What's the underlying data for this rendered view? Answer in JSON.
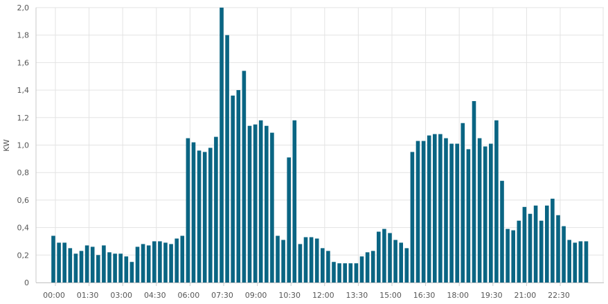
{
  "chart_data": {
    "type": "bar",
    "ylabel": "KW",
    "xlabel": "",
    "ylim": [
      0,
      2.0
    ],
    "yticks": [
      "0",
      "0,2",
      "0,4",
      "0,6",
      "0,8",
      "1,0",
      "1,2",
      "1,4",
      "1,6",
      "1,8",
      "2,0"
    ],
    "xtick_labels": [
      "00:00",
      "01:30",
      "03:00",
      "04:30",
      "06:00",
      "07:30",
      "09:00",
      "10:30",
      "12:00",
      "13:30",
      "15:00",
      "16:30",
      "18:00",
      "19:30",
      "21:00",
      "22:30"
    ],
    "categories": [
      "00:00",
      "00:15",
      "00:30",
      "00:45",
      "01:00",
      "01:15",
      "01:30",
      "01:45",
      "02:00",
      "02:15",
      "02:30",
      "02:45",
      "03:00",
      "03:15",
      "03:30",
      "03:45",
      "04:00",
      "04:15",
      "04:30",
      "04:45",
      "05:00",
      "05:15",
      "05:30",
      "05:45",
      "06:00",
      "06:15",
      "06:30",
      "06:45",
      "07:00",
      "07:15",
      "07:30",
      "07:45",
      "08:00",
      "08:15",
      "08:30",
      "08:45",
      "09:00",
      "09:15",
      "09:30",
      "09:45",
      "10:00",
      "10:15",
      "10:30",
      "10:45",
      "11:00",
      "11:15",
      "11:30",
      "11:45",
      "12:00",
      "12:15",
      "12:30",
      "12:45",
      "13:00",
      "13:15",
      "13:30",
      "13:45",
      "14:00",
      "14:15",
      "14:30",
      "14:45",
      "15:00",
      "15:15",
      "15:30",
      "15:45",
      "16:00",
      "16:15",
      "16:30",
      "16:45",
      "17:00",
      "17:15",
      "17:30",
      "17:45",
      "18:00",
      "18:15",
      "18:30",
      "18:45",
      "19:00",
      "19:15",
      "19:30",
      "19:45",
      "20:00",
      "20:15",
      "20:30",
      "20:45",
      "21:00",
      "21:15",
      "21:30",
      "21:45",
      "22:00",
      "22:15",
      "22:30",
      "22:45",
      "23:00",
      "23:15",
      "23:30",
      "23:45"
    ],
    "values": [
      0.34,
      0.29,
      0.29,
      0.25,
      0.21,
      0.23,
      0.27,
      0.26,
      0.2,
      0.27,
      0.22,
      0.21,
      0.21,
      0.19,
      0.15,
      0.26,
      0.28,
      0.27,
      0.3,
      0.3,
      0.29,
      0.28,
      0.32,
      0.34,
      1.05,
      1.02,
      0.96,
      0.95,
      0.98,
      1.06,
      2.0,
      1.8,
      1.36,
      1.4,
      1.54,
      1.14,
      1.15,
      1.18,
      1.14,
      1.09,
      0.34,
      0.31,
      0.91,
      1.18,
      0.28,
      0.33,
      0.33,
      0.32,
      0.25,
      0.23,
      0.15,
      0.14,
      0.14,
      0.14,
      0.14,
      0.19,
      0.22,
      0.23,
      0.37,
      0.39,
      0.36,
      0.31,
      0.29,
      0.25,
      0.95,
      1.03,
      1.03,
      1.07,
      1.08,
      1.08,
      1.05,
      1.01,
      1.01,
      1.16,
      0.97,
      1.32,
      1.05,
      0.99,
      1.01,
      1.18,
      0.74,
      0.39,
      0.38,
      0.45,
      0.55,
      0.5,
      0.56,
      0.45,
      0.56,
      0.61,
      0.49,
      0.41,
      0.31,
      0.29,
      0.3,
      0.3
    ],
    "bar_color": "#0a6583",
    "grid": true,
    "legend": "none"
  }
}
